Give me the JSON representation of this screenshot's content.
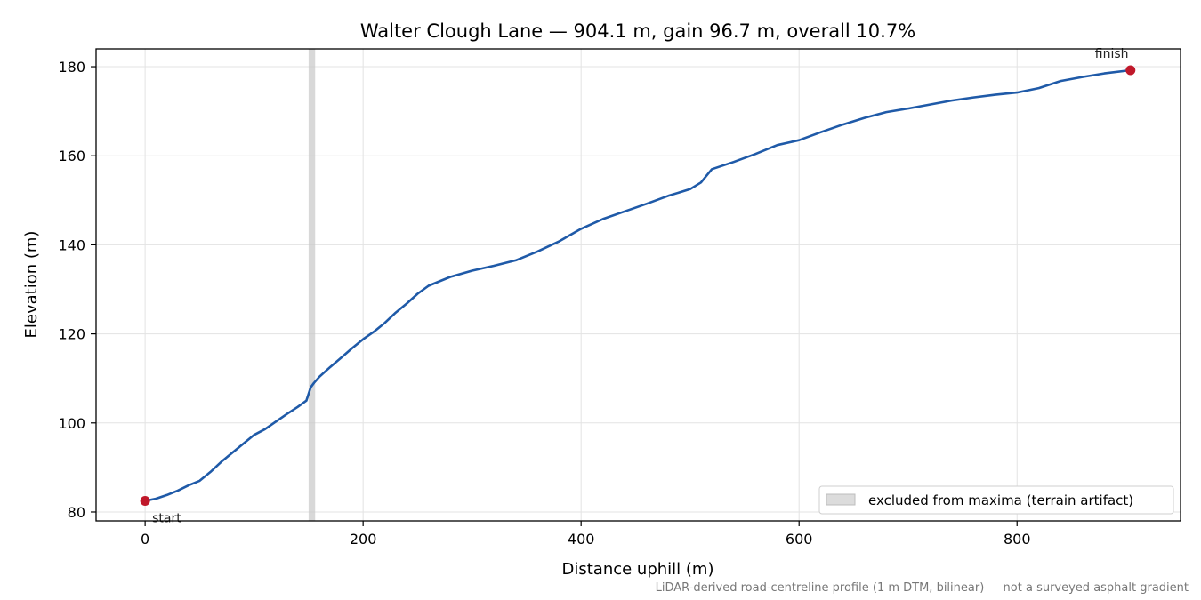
{
  "chart_data": {
    "type": "line",
    "title": "Walter Clough Lane — 904.1 m, gain 96.7 m, overall 10.7%",
    "xlabel": "Distance uphill (m)",
    "ylabel": "Elevation (m)",
    "xlim": [
      -45,
      950
    ],
    "ylim": [
      78,
      184
    ],
    "xticks": [
      0,
      200,
      400,
      600,
      800
    ],
    "yticks": [
      80,
      100,
      120,
      140,
      160,
      180
    ],
    "grid": true,
    "series": [
      {
        "color": "#1f5aa8",
        "x": [
          0,
          10,
          20,
          30,
          40,
          50,
          60,
          70,
          80,
          90,
          100,
          110,
          120,
          130,
          140,
          148,
          152,
          155,
          160,
          170,
          180,
          190,
          200,
          210,
          220,
          230,
          240,
          250,
          260,
          270,
          280,
          290,
          300,
          320,
          340,
          360,
          380,
          400,
          420,
          440,
          460,
          480,
          500,
          510,
          520,
          540,
          560,
          580,
          600,
          620,
          640,
          660,
          680,
          700,
          720,
          740,
          760,
          780,
          800,
          820,
          840,
          860,
          880,
          904.1
        ],
        "y": [
          82.5,
          83.0,
          83.8,
          84.8,
          86.0,
          87.0,
          89.0,
          91.3,
          93.3,
          95.3,
          97.3,
          98.6,
          100.3,
          102.0,
          103.6,
          105.0,
          108.0,
          109.0,
          110.4,
          112.6,
          114.7,
          116.8,
          118.8,
          120.5,
          122.5,
          124.8,
          126.8,
          129.0,
          130.8,
          131.8,
          132.8,
          133.5,
          134.2,
          135.3,
          136.5,
          138.5,
          140.8,
          143.6,
          145.8,
          147.5,
          149.2,
          151.0,
          152.5,
          154.0,
          157.0,
          158.6,
          160.4,
          162.4,
          163.5,
          165.3,
          167.0,
          168.5,
          169.8,
          170.6,
          171.5,
          172.4,
          173.1,
          173.7,
          174.2,
          175.2,
          176.8,
          177.7,
          178.5,
          179.2
        ]
      }
    ],
    "excluded_band": {
      "x0": 150,
      "x1": 156
    },
    "legend": {
      "label": "excluded from maxima (terrain artifact)",
      "position": "lower-right"
    },
    "annotations": [
      {
        "text": "start",
        "x": 0,
        "y": 82.5
      },
      {
        "text": "finish",
        "x": 904.1,
        "y": 179.2
      }
    ],
    "colors": {
      "line": "#1f5aa8",
      "endpoint": "#c0182a",
      "band": "#c8c8c8"
    }
  },
  "footnote": "LiDAR-derived road-centreline profile (1 m DTM, bilinear) — not a surveyed asphalt gradient"
}
